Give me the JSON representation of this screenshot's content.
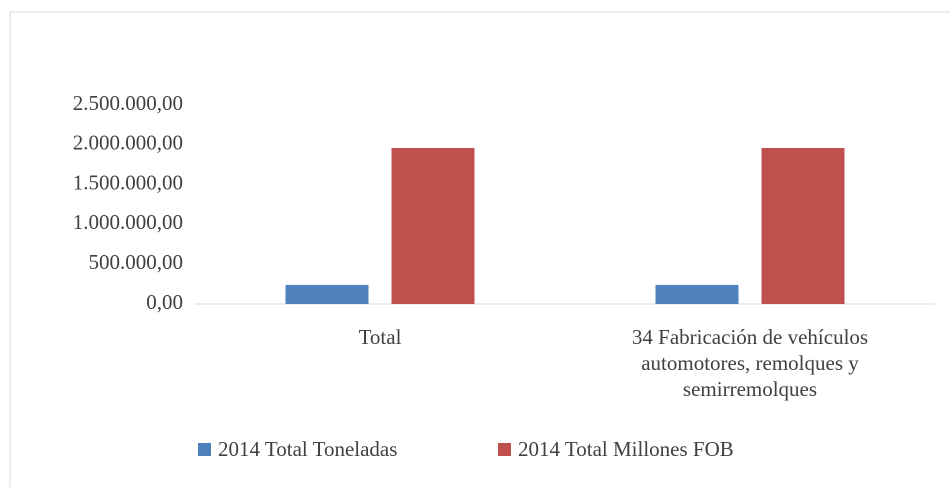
{
  "chart_data": {
    "type": "bar",
    "categories": [
      "Total",
      "34 Fabricación de vehículos automotores, remolques y semirremolques"
    ],
    "series": [
      {
        "name": "2014 Total Toneladas",
        "color": "#4f81bd",
        "values": [
          240000,
          240000
        ]
      },
      {
        "name": "2014 Total Millones FOB",
        "color": "#c0504d",
        "values": [
          1960000,
          1960000
        ]
      }
    ],
    "ylim": [
      0,
      2500000
    ],
    "yticks": [
      {
        "value": 0,
        "label": "0,00"
      },
      {
        "value": 500000,
        "label": "500.000,00"
      },
      {
        "value": 1000000,
        "label": "1.000.000,00"
      },
      {
        "value": 1500000,
        "label": "1.500.000,00"
      },
      {
        "value": 2000000,
        "label": "2.000.000,00"
      },
      {
        "value": 2500000,
        "label": "2.500.000,00"
      }
    ],
    "grid": false,
    "legend": "bottom"
  }
}
